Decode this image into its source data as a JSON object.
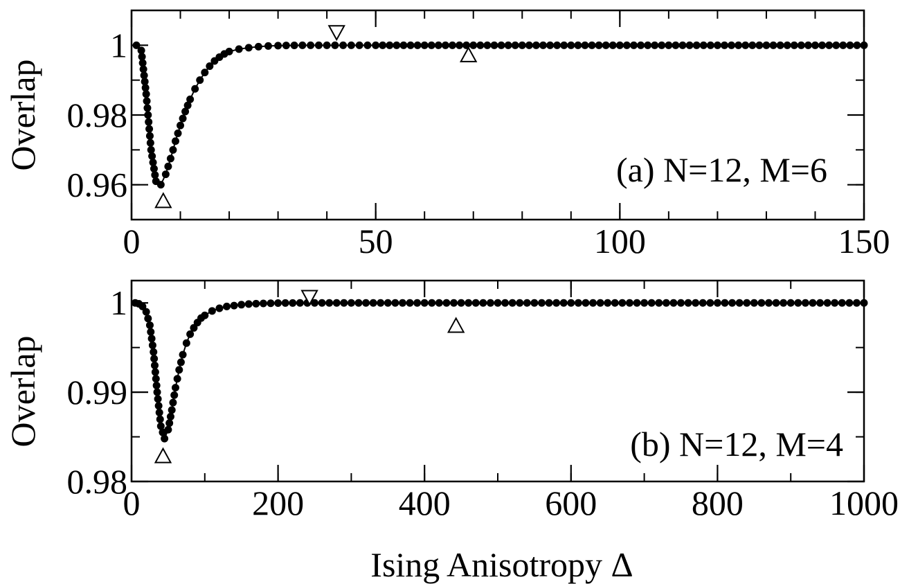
{
  "figure": {
    "xlabel": "Ising Anisotropy  Δ"
  },
  "chart_data": [
    {
      "type": "line",
      "panel_label": "(a) N=12, M=6",
      "ylabel": "Overlap",
      "xlim": [
        0,
        150
      ],
      "ylim": [
        0.95,
        1.01
      ],
      "xticks": [
        0,
        50,
        100,
        150
      ],
      "xtick_labels": [
        "0",
        "50",
        "100",
        "150"
      ],
      "yticks": [
        0.96,
        0.98,
        1.0
      ],
      "ytick_labels": [
        "0.96",
        "0.98",
        "1"
      ],
      "minor_x": 10,
      "minor_y": 0.01,
      "series": [
        {
          "x": [
            1,
            2,
            3,
            4,
            5,
            6,
            7,
            8,
            9,
            10,
            11,
            12,
            13,
            14,
            15,
            16,
            17,
            18,
            19,
            20,
            22,
            24,
            26,
            28,
            30,
            35,
            40,
            45,
            50,
            60,
            70,
            80,
            90,
            100,
            110,
            120,
            130,
            140,
            150
          ],
          "y": [
            1.0,
            0.9985,
            0.986,
            0.97,
            0.961,
            0.96,
            0.963,
            0.9675,
            0.9725,
            0.977,
            0.981,
            0.9845,
            0.9875,
            0.99,
            0.9922,
            0.994,
            0.9955,
            0.9966,
            0.9975,
            0.9982,
            0.9989,
            0.9993,
            0.9996,
            0.9998,
            0.9999,
            1.0,
            1.0,
            1.0,
            1.0,
            1.0,
            1.0,
            1.0,
            1.0,
            1.0,
            1.0,
            1.0,
            1.0,
            1.0,
            1.0
          ],
          "marker": "filled-circle"
        }
      ],
      "markers": [
        {
          "symbol": "triangle-up",
          "x": 6.5,
          "y": 0.9555
        },
        {
          "symbol": "triangle-down",
          "x": 42,
          "y": 1.0036
        },
        {
          "symbol": "triangle-up",
          "x": 69,
          "y": 0.9973
        }
      ]
    },
    {
      "type": "line",
      "panel_label": "(b) N=12, M=4",
      "ylabel": "Overlap",
      "xlim": [
        0,
        1000
      ],
      "ylim": [
        0.98,
        1.0025
      ],
      "xticks": [
        0,
        200,
        400,
        600,
        800,
        1000
      ],
      "xtick_labels": [
        "0",
        "200",
        "400",
        "600",
        "800",
        "1000"
      ],
      "yticks": [
        0.98,
        0.99,
        1.0
      ],
      "ytick_labels": [
        "0.98",
        "0.99",
        "1"
      ],
      "minor_x": 100,
      "minor_y": 0.005,
      "series": [
        {
          "x": [
            5,
            10,
            15,
            20,
            25,
            30,
            35,
            40,
            45,
            50,
            55,
            60,
            65,
            70,
            75,
            80,
            85,
            90,
            95,
            100,
            110,
            120,
            130,
            140,
            150,
            160,
            170,
            180,
            190,
            200,
            220,
            240,
            260,
            280,
            300,
            350,
            400,
            450,
            500,
            550,
            600,
            650,
            700,
            750,
            800,
            850,
            900,
            950,
            1000
          ],
          "y": [
            1.0,
            0.9999,
            0.9996,
            0.999,
            0.9975,
            0.9945,
            0.99,
            0.9862,
            0.9848,
            0.9858,
            0.988,
            0.9905,
            0.9925,
            0.9942,
            0.9955,
            0.9965,
            0.9972,
            0.9978,
            0.9983,
            0.9986,
            0.9991,
            0.9994,
            0.9996,
            0.9997,
            0.9998,
            0.99987,
            0.99991,
            0.99994,
            0.99996,
            0.99998,
            0.99999,
            1.0,
            1.0,
            1.0,
            1.0,
            1.0,
            1.0,
            1.0,
            1.0,
            1.0,
            1.0,
            1.0,
            1.0,
            1.0,
            1.0,
            1.0,
            1.0,
            1.0,
            1.0
          ],
          "marker": "filled-circle"
        }
      ],
      "markers": [
        {
          "symbol": "triangle-up",
          "x": 43,
          "y": 0.9829
        },
        {
          "symbol": "triangle-down",
          "x": 243,
          "y": 1.0006
        },
        {
          "symbol": "triangle-up",
          "x": 443,
          "y": 0.9975
        }
      ]
    }
  ]
}
